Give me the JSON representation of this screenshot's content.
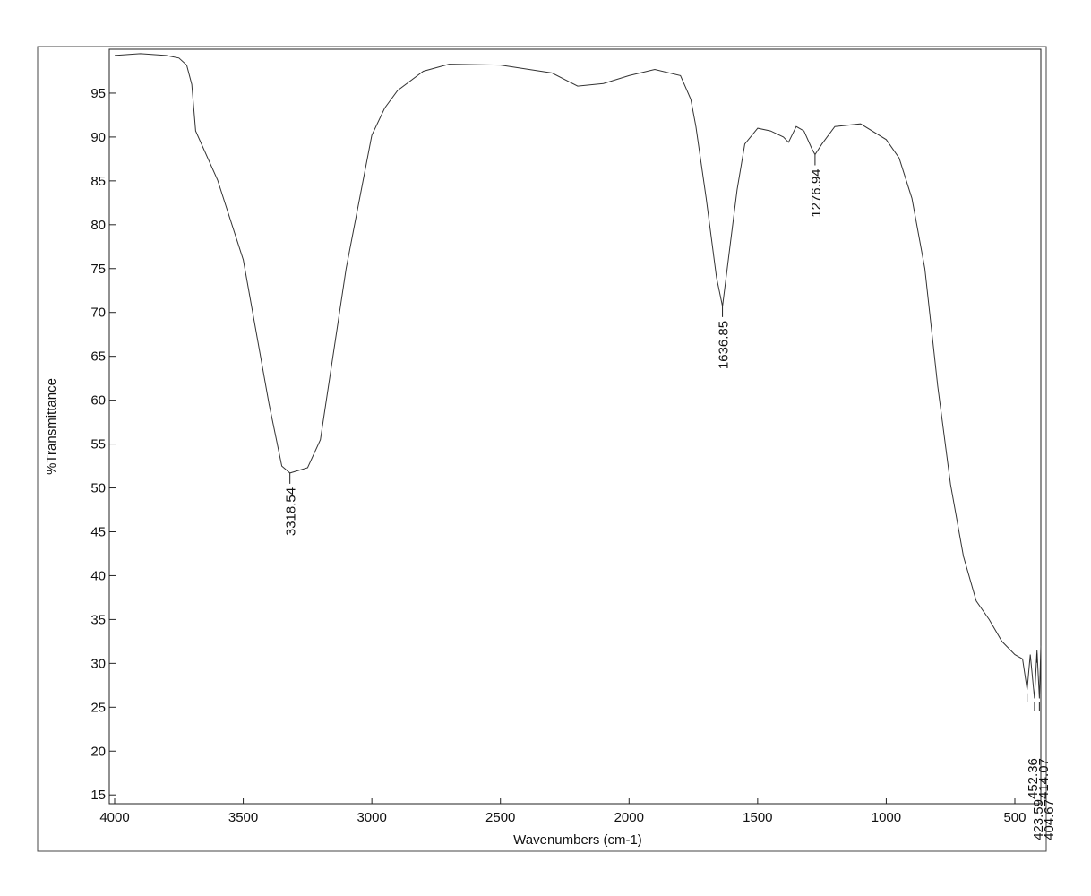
{
  "chart_data": {
    "type": "line",
    "xlabel": "Wavenumbers (cm-1)",
    "ylabel": "%Transmittance",
    "xlim": [
      4000,
      399
    ],
    "ylim": [
      14,
      100
    ],
    "xticks": [
      4000,
      3500,
      3000,
      2500,
      2000,
      1500,
      1000,
      500
    ],
    "yticks": [
      15,
      20,
      25,
      30,
      35,
      40,
      45,
      50,
      55,
      60,
      65,
      70,
      75,
      80,
      85,
      90,
      95
    ],
    "series": [
      {
        "color": "#333333",
        "x": [
          4000,
          3900,
          3800,
          3750,
          3720,
          3700,
          3685,
          3600,
          3500,
          3400,
          3350,
          3318.54,
          3250,
          3200,
          3100,
          3000,
          2950,
          2900,
          2800,
          2700,
          2500,
          2300,
          2200,
          2100,
          2000,
          1900,
          1800,
          1760,
          1740,
          1700,
          1660,
          1636.85,
          1610,
          1580,
          1550,
          1500,
          1450,
          1400,
          1380,
          1350,
          1320,
          1290,
          1276.94,
          1250,
          1200,
          1100,
          1000,
          950,
          900,
          850,
          800,
          750,
          700,
          650,
          600,
          550,
          500,
          470,
          452.36,
          440,
          423.59,
          414.07,
          404.67,
          399
        ],
        "values": [
          99.3,
          99.5,
          99.3,
          99.0,
          98.2,
          96,
          90.7,
          85.1,
          76,
          59.6,
          52.5,
          51.7,
          52.3,
          55.5,
          75,
          90.2,
          93.3,
          95.3,
          97.5,
          98.3,
          98.2,
          97.3,
          95.8,
          96.1,
          97,
          97.7,
          97,
          94.3,
          91.2,
          83,
          74,
          70.7,
          77,
          84,
          89.2,
          91,
          90.7,
          90,
          89.4,
          91.2,
          90.7,
          88.7,
          88,
          89.2,
          91.2,
          91.5,
          89.7,
          87.6,
          83,
          75,
          61.6,
          50.4,
          42.2,
          37.1,
          35,
          32.5,
          31,
          30.5,
          27,
          31,
          26,
          31.5,
          26,
          32
        ]
      }
    ],
    "annotations": [
      {
        "text": "3318.54",
        "x": 3318.54,
        "y": 51.7
      },
      {
        "text": "1636.85",
        "x": 1636.85,
        "y": 70.7
      },
      {
        "text": "1276.94",
        "x": 1276.94,
        "y": 88
      },
      {
        "text": "452.36",
        "x": 452.36,
        "y": 27
      },
      {
        "text": "423.59",
        "x": 423.59,
        "y": 26
      },
      {
        "text": "414.07",
        "x": 414.07,
        "y": 31.5
      },
      {
        "text": "404.67",
        "x": 404.67,
        "y": 26
      }
    ]
  }
}
